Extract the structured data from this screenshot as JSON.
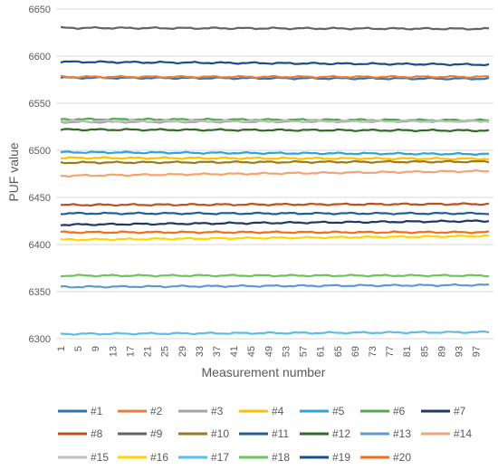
{
  "chart_data": {
    "type": "line",
    "title": "",
    "xlabel": "Measurement number",
    "ylabel": "PUF value",
    "ylim": [
      6300,
      6650
    ],
    "yticks": [
      6300,
      6350,
      6400,
      6450,
      6500,
      6550,
      6600,
      6650
    ],
    "x_count": 100,
    "xtick_labels": [
      "1",
      "5",
      "9",
      "13",
      "17",
      "21",
      "25",
      "29",
      "33",
      "37",
      "41",
      "45",
      "49",
      "53",
      "57",
      "61",
      "65",
      "69",
      "73",
      "77",
      "81",
      "85",
      "89",
      "93",
      "97"
    ],
    "grid": true,
    "legend_position": "bottom",
    "series": [
      {
        "name": "#1",
        "color": "#2e75b6",
        "start": 6577,
        "end": 6576
      },
      {
        "name": "#2",
        "color": "#ed7d31",
        "start": 6578,
        "end": 6578
      },
      {
        "name": "#3",
        "color": "#a5a5a5",
        "start": 6530,
        "end": 6531
      },
      {
        "name": "#4",
        "color": "#ffc000",
        "start": 6492,
        "end": 6491
      },
      {
        "name": "#5",
        "color": "#2ea3d8",
        "start": 6498,
        "end": 6496
      },
      {
        "name": "#6",
        "color": "#4dac46",
        "start": 6533,
        "end": 6532
      },
      {
        "name": "#7",
        "color": "#1f3864",
        "start": 6421,
        "end": 6425
      },
      {
        "name": "#8",
        "color": "#c0501a",
        "start": 6442,
        "end": 6443
      },
      {
        "name": "#9",
        "color": "#636363",
        "start": 6630,
        "end": 6629
      },
      {
        "name": "#10",
        "color": "#9e7a12",
        "start": 6487,
        "end": 6488
      },
      {
        "name": "#11",
        "color": "#1f5fa0",
        "start": 6433,
        "end": 6433
      },
      {
        "name": "#12",
        "color": "#2f6b24",
        "start": 6522,
        "end": 6521
      },
      {
        "name": "#13",
        "color": "#5b9bd5",
        "start": 6355,
        "end": 6357
      },
      {
        "name": "#14",
        "color": "#f4a46e",
        "start": 6473,
        "end": 6478
      },
      {
        "name": "#15",
        "color": "#bfbfbf",
        "start": 6531,
        "end": 6531
      },
      {
        "name": "#16",
        "color": "#ffd500",
        "start": 6405,
        "end": 6409
      },
      {
        "name": "#17",
        "color": "#5cbcea",
        "start": 6305,
        "end": 6307
      },
      {
        "name": "#18",
        "color": "#6fc25f",
        "start": 6367,
        "end": 6367
      },
      {
        "name": "#19",
        "color": "#184e8a",
        "start": 6594,
        "end": 6591
      },
      {
        "name": "#20",
        "color": "#f36d1c",
        "start": 6413,
        "end": 6413
      }
    ]
  }
}
